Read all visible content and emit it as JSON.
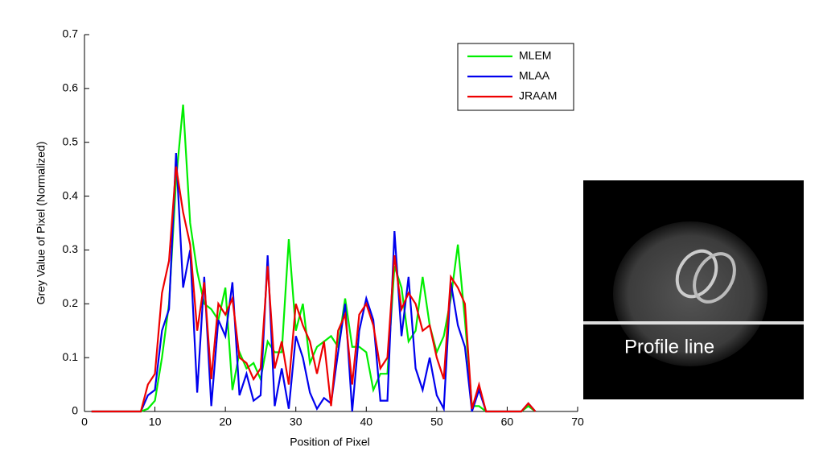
{
  "chart_data": {
    "type": "line",
    "xlabel": "Position of Pixel",
    "ylabel": "Grey Value of Pixel (Normalized)",
    "x": [
      1,
      2,
      3,
      4,
      5,
      6,
      7,
      8,
      9,
      10,
      11,
      12,
      13,
      14,
      15,
      16,
      17,
      18,
      19,
      20,
      21,
      22,
      23,
      24,
      25,
      26,
      27,
      28,
      29,
      30,
      31,
      32,
      33,
      34,
      35,
      36,
      37,
      38,
      39,
      40,
      41,
      42,
      43,
      44,
      45,
      46,
      47,
      48,
      49,
      50,
      51,
      52,
      53,
      54,
      55,
      56,
      57,
      58,
      59,
      60,
      61,
      62,
      63,
      64
    ],
    "series": [
      {
        "name": "MLEM",
        "color": "#00ee00",
        "values": [
          0,
          0,
          0,
          0,
          0,
          0,
          0,
          0,
          0.005,
          0.02,
          0.1,
          0.2,
          0.43,
          0.57,
          0.35,
          0.26,
          0.2,
          0.19,
          0.17,
          0.23,
          0.04,
          0.11,
          0.08,
          0.09,
          0.06,
          0.13,
          0.11,
          0.11,
          0.32,
          0.15,
          0.2,
          0.09,
          0.12,
          0.13,
          0.14,
          0.12,
          0.21,
          0.12,
          0.12,
          0.11,
          0.04,
          0.07,
          0.07,
          0.27,
          0.23,
          0.13,
          0.15,
          0.25,
          0.16,
          0.11,
          0.14,
          0.21,
          0.31,
          0.17,
          0.01,
          0.01,
          0,
          0,
          0,
          0,
          0,
          0,
          0.01,
          0
        ]
      },
      {
        "name": "MLAA",
        "color": "#0000ee",
        "values": [
          0,
          0,
          0,
          0,
          0,
          0,
          0,
          0,
          0.03,
          0.04,
          0.15,
          0.19,
          0.48,
          0.23,
          0.3,
          0.035,
          0.25,
          0.01,
          0.17,
          0.14,
          0.24,
          0.03,
          0.07,
          0.02,
          0.03,
          0.29,
          0.01,
          0.08,
          0.005,
          0.14,
          0.1,
          0.035,
          0.005,
          0.025,
          0.015,
          0.11,
          0.2,
          0,
          0.15,
          0.21,
          0.17,
          0.02,
          0.02,
          0.335,
          0.14,
          0.25,
          0.08,
          0.04,
          0.1,
          0.03,
          0.005,
          0.24,
          0.16,
          0.12,
          0,
          0.04,
          0,
          0,
          0,
          0,
          0,
          0,
          0.015,
          0
        ]
      },
      {
        "name": "JRAAM",
        "color": "#ee0000",
        "values": [
          0,
          0,
          0,
          0,
          0,
          0,
          0,
          0,
          0.05,
          0.07,
          0.22,
          0.28,
          0.455,
          0.37,
          0.31,
          0.15,
          0.24,
          0.06,
          0.2,
          0.18,
          0.21,
          0.1,
          0.09,
          0.06,
          0.08,
          0.27,
          0.08,
          0.13,
          0.05,
          0.2,
          0.16,
          0.13,
          0.07,
          0.13,
          0.01,
          0.15,
          0.18,
          0.05,
          0.18,
          0.2,
          0.16,
          0.08,
          0.1,
          0.29,
          0.19,
          0.22,
          0.2,
          0.15,
          0.16,
          0.1,
          0.06,
          0.25,
          0.23,
          0.2,
          0.005,
          0.05,
          0,
          0,
          0,
          0,
          0,
          0,
          0.015,
          0
        ]
      }
    ],
    "xlim": [
      0,
      70
    ],
    "xticks": [
      0,
      10,
      20,
      30,
      40,
      50,
      60,
      70
    ],
    "ylim": [
      0,
      0.7
    ],
    "yticks": [
      0,
      0.1,
      0.2,
      0.3,
      0.4,
      0.5,
      0.6,
      0.7
    ],
    "legend": "upper right",
    "annotation": "Profile line"
  }
}
